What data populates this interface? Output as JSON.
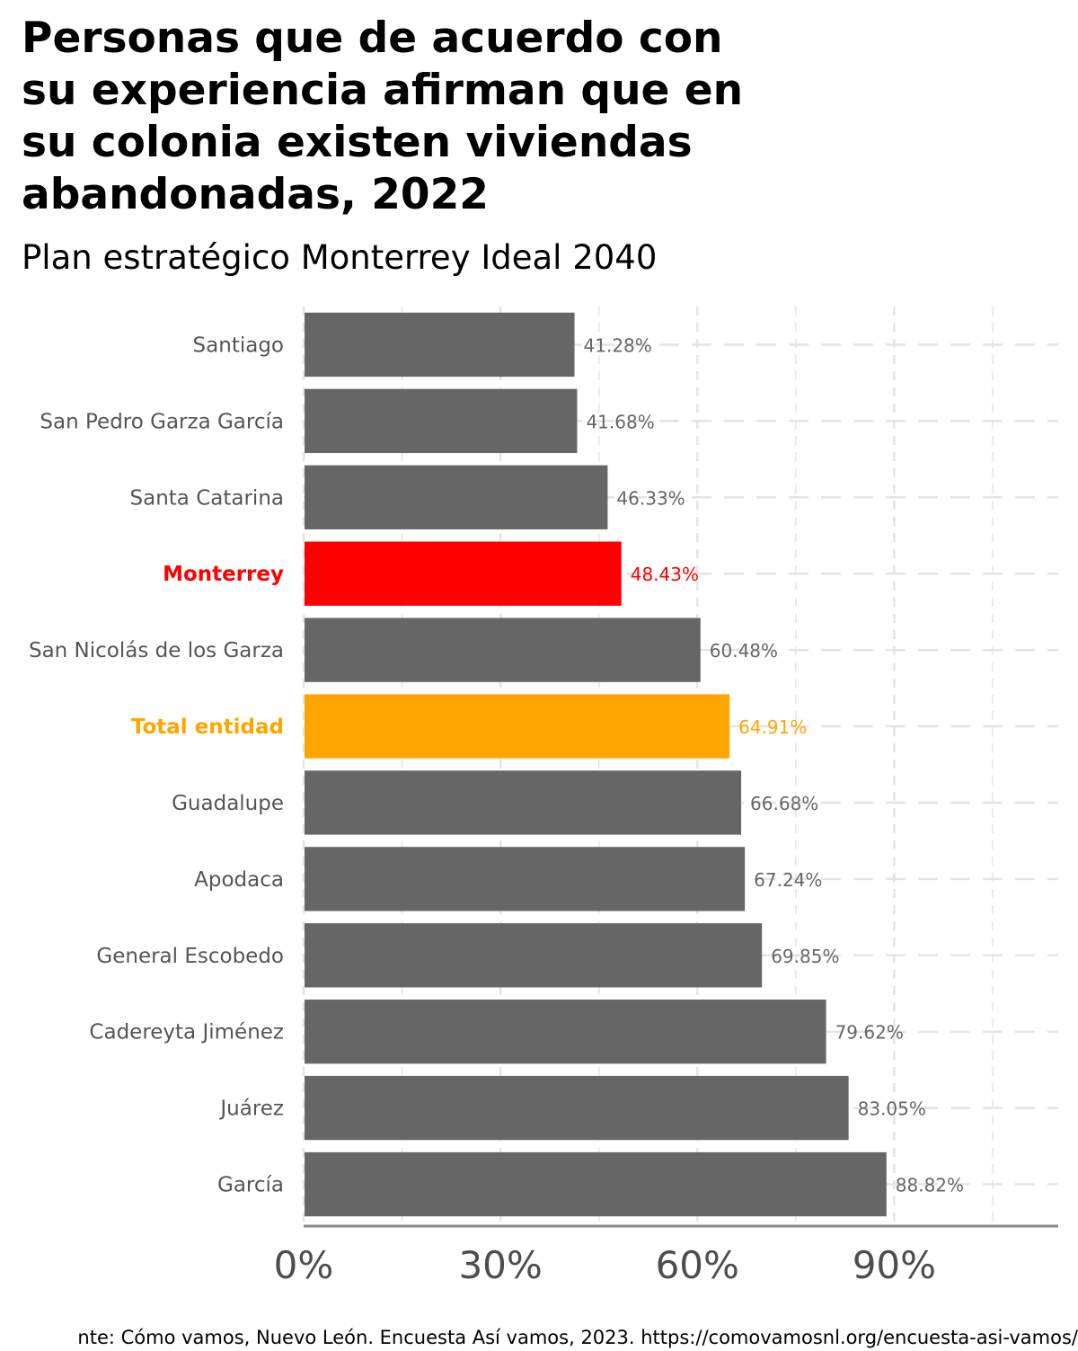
{
  "chart_data": {
    "type": "bar",
    "orientation": "horizontal",
    "title": "Personas que de acuerdo con\nsu experiencia afirman que en\nsu colonia existen viviendas\nabandonadas, 2022",
    "subtitle": "Plan estratégico Monterrey Ideal 2040",
    "caption": "nte: Cómo vamos, Nuevo León. Encuesta Así vamos, 2023. https://comovamosnl.org/encuesta-asi-vamos/",
    "categories": [
      "Santiago",
      "San Pedro Garza García",
      "Santa Catarina",
      "Monterrey",
      "San Nicolás de los Garza",
      "Total entidad",
      "Guadalupe",
      "Apodaca",
      "General Escobedo",
      "Cadereyta Jiménez",
      "Juárez",
      "García"
    ],
    "values": [
      41.28,
      41.68,
      46.33,
      48.43,
      60.48,
      64.91,
      66.68,
      67.24,
      69.85,
      79.62,
      83.05,
      88.82
    ],
    "value_labels": [
      "41.28%",
      "41.68%",
      "46.33%",
      "48.43%",
      "60.48%",
      "64.91%",
      "66.68%",
      "67.24%",
      "69.85%",
      "79.62%",
      "83.05%",
      "88.82%"
    ],
    "highlight": {
      "Monterrey": "#ff0000",
      "Total entidad": "#ffa500"
    },
    "default_color": "#666666",
    "xlim": [
      0,
      115
    ],
    "xticks": [
      0,
      30,
      60,
      90
    ],
    "xtick_labels": [
      "0%",
      "30%",
      "60%",
      "90%"
    ],
    "grid": true,
    "legend": "none"
  }
}
